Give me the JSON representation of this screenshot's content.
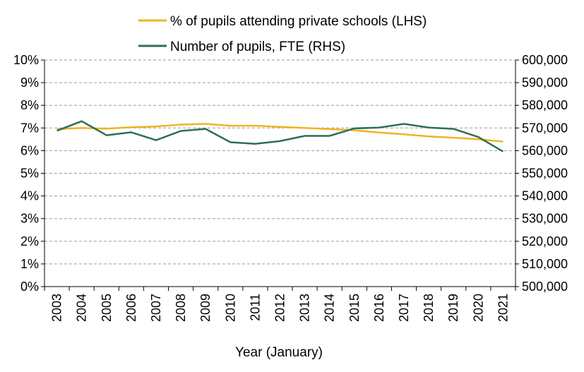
{
  "chart_data": {
    "type": "line",
    "x": [
      "2003",
      "2004",
      "2005",
      "2006",
      "2007",
      "2008",
      "2009",
      "2010",
      "2011",
      "2012",
      "2013",
      "2014",
      "2015",
      "2016",
      "2017",
      "2018",
      "2019",
      "2020",
      "2021"
    ],
    "xlabel": "Year (January)",
    "y_left": {
      "min": 0,
      "max": 10,
      "step": 1,
      "tick_labels": [
        "0%",
        "1%",
        "2%",
        "3%",
        "4%",
        "5%",
        "6%",
        "7%",
        "8%",
        "9%",
        "10%"
      ]
    },
    "y_right": {
      "min": 500000,
      "max": 600000,
      "step": 10000,
      "tick_labels": [
        "500,000",
        "510,000",
        "520,000",
        "530,000",
        "540,000",
        "550,000",
        "560,000",
        "570,000",
        "580,000",
        "590,000",
        "600,000"
      ]
    },
    "grid": "horizontal dashed",
    "legend_position": "top",
    "series": [
      {
        "name": "% of pupils attending private schools (LHS)",
        "axis": "left",
        "color": "#F0B323",
        "values": [
          6.95,
          7.0,
          6.97,
          7.03,
          7.07,
          7.15,
          7.18,
          7.1,
          7.1,
          7.05,
          7.0,
          6.95,
          6.9,
          6.8,
          6.72,
          6.63,
          6.57,
          6.5,
          6.4
        ]
      },
      {
        "name": "Number of pupils, FTE (RHS)",
        "axis": "right",
        "color": "#2E6E57",
        "values": [
          568800,
          573000,
          566800,
          568100,
          564600,
          568700,
          569600,
          563700,
          563000,
          564200,
          566500,
          566500,
          569800,
          570200,
          571800,
          570200,
          569600,
          566000,
          559600
        ]
      }
    ]
  }
}
